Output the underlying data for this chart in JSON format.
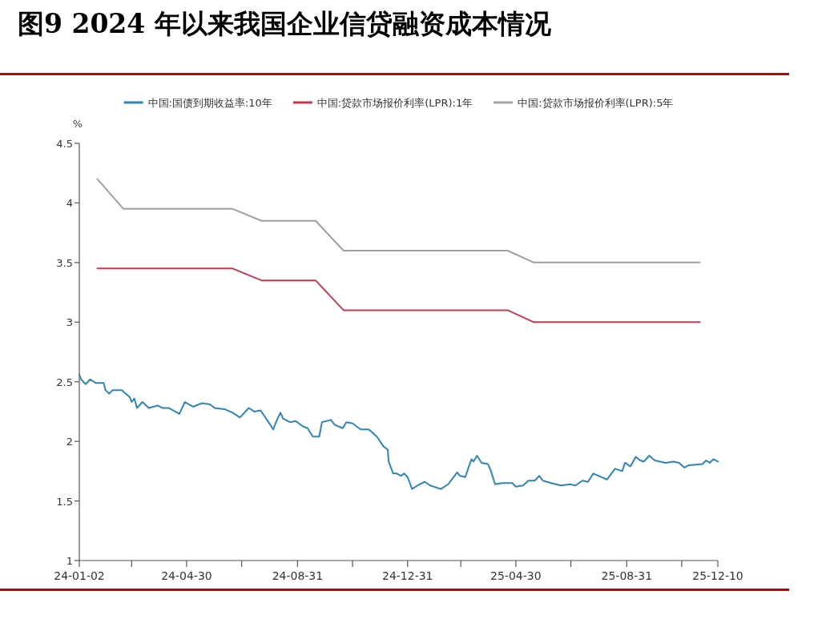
{
  "chart_data": {
    "type": "line",
    "title": "图9  2024 年以来我国企业信贷融资成本情况",
    "ylabel": "%",
    "xlim": [
      "2024-01-02",
      "2025-12-10"
    ],
    "xticks": [
      {
        "value": "2024-01-02",
        "label": "24-01-02"
      },
      {
        "value": "2024-02-29",
        "label": null
      },
      {
        "value": "2024-04-30",
        "label": "24-04-30"
      },
      {
        "value": "2024-06-30",
        "label": null
      },
      {
        "value": "2024-08-31",
        "label": "24-08-31"
      },
      {
        "value": "2024-10-31",
        "label": null
      },
      {
        "value": "2024-12-31",
        "label": "24-12-31"
      },
      {
        "value": "2025-02-28",
        "label": null
      },
      {
        "value": "2025-04-30",
        "label": "25-04-30"
      },
      {
        "value": "2025-06-30",
        "label": null
      },
      {
        "value": "2025-08-31",
        "label": "25-08-31"
      },
      {
        "value": "2025-10-31",
        "label": null
      },
      {
        "value": "2025-12-10",
        "label": "25-12-10"
      }
    ],
    "ylim": [
      1,
      4.5
    ],
    "yticks": [
      1,
      1.5,
      2,
      2.5,
      3,
      3.5,
      4,
      4.5
    ],
    "grid": false,
    "legend": "top",
    "marker": "none",
    "line_style": "solid",
    "series": [
      {
        "name": "中国:国债到期收益率:10年",
        "color": "#2f86b5",
        "x": [
          "2024-01-02",
          "2024-01-04",
          "2024-01-09",
          "2024-01-14",
          "2024-01-20",
          "2024-01-29",
          "2024-01-31",
          "2024-02-04",
          "2024-02-08",
          "2024-02-18",
          "2024-02-27",
          "2024-02-29",
          "2024-03-03",
          "2024-03-06",
          "2024-03-12",
          "2024-03-19",
          "2024-03-29",
          "2024-04-03",
          "2024-04-10",
          "2024-04-22",
          "2024-04-28",
          "2024-05-07",
          "2024-05-17",
          "2024-05-26",
          "2024-05-31",
          "2024-06-11",
          "2024-06-20",
          "2024-06-28",
          "2024-07-08",
          "2024-07-14",
          "2024-07-21",
          "2024-07-29",
          "2024-08-04",
          "2024-08-07",
          "2024-08-12",
          "2024-08-15",
          "2024-08-23",
          "2024-08-29",
          "2024-09-05",
          "2024-09-11",
          "2024-09-17",
          "2024-09-24",
          "2024-09-27",
          "2024-10-07",
          "2024-10-11",
          "2024-10-20",
          "2024-10-24",
          "2024-10-31",
          "2024-11-09",
          "2024-11-18",
          "2024-11-27",
          "2024-12-04",
          "2024-12-09",
          "2024-12-10",
          "2024-12-15",
          "2024-12-19",
          "2024-12-24",
          "2024-12-27",
          "2024-12-31",
          "2025-01-05",
          "2025-01-11",
          "2025-01-19",
          "2025-01-25",
          "2025-02-06",
          "2025-02-14",
          "2025-02-18",
          "2025-02-24",
          "2025-02-27",
          "2025-03-05",
          "2025-03-09",
          "2025-03-12",
          "2025-03-14",
          "2025-03-18",
          "2025-03-23",
          "2025-03-30",
          "2025-04-02",
          "2025-04-07",
          "2025-04-15",
          "2025-04-26",
          "2025-04-30",
          "2025-05-08",
          "2025-05-14",
          "2025-05-21",
          "2025-05-26",
          "2025-05-30",
          "2025-06-08",
          "2025-06-19",
          "2025-06-29",
          "2025-07-05",
          "2025-07-13",
          "2025-07-19",
          "2025-07-25",
          "2025-07-31",
          "2025-08-09",
          "2025-08-18",
          "2025-08-26",
          "2025-08-29",
          "2025-09-04",
          "2025-09-10",
          "2025-09-15",
          "2025-09-19",
          "2025-09-25",
          "2025-10-01",
          "2025-10-13",
          "2025-10-22",
          "2025-10-28",
          "2025-11-03",
          "2025-11-08",
          "2025-11-23",
          "2025-11-27",
          "2025-12-01",
          "2025-12-05",
          "2025-12-10"
        ],
        "values": [
          2.56,
          2.52,
          2.48,
          2.52,
          2.49,
          2.49,
          2.43,
          2.4,
          2.43,
          2.43,
          2.37,
          2.33,
          2.36,
          2.28,
          2.33,
          2.28,
          2.3,
          2.28,
          2.28,
          2.23,
          2.33,
          2.29,
          2.32,
          2.31,
          2.28,
          2.27,
          2.24,
          2.2,
          2.28,
          2.25,
          2.26,
          2.17,
          2.1,
          2.16,
          2.24,
          2.19,
          2.16,
          2.17,
          2.13,
          2.11,
          2.04,
          2.04,
          2.16,
          2.18,
          2.14,
          2.11,
          2.16,
          2.15,
          2.1,
          2.1,
          2.04,
          1.96,
          1.93,
          1.83,
          1.73,
          1.73,
          1.71,
          1.73,
          1.7,
          1.6,
          1.63,
          1.66,
          1.63,
          1.6,
          1.64,
          1.68,
          1.74,
          1.71,
          1.7,
          1.79,
          1.85,
          1.83,
          1.88,
          1.82,
          1.81,
          1.76,
          1.64,
          1.65,
          1.65,
          1.62,
          1.63,
          1.67,
          1.67,
          1.71,
          1.67,
          1.65,
          1.63,
          1.64,
          1.63,
          1.67,
          1.66,
          1.73,
          1.71,
          1.68,
          1.77,
          1.75,
          1.82,
          1.79,
          1.87,
          1.84,
          1.83,
          1.88,
          1.84,
          1.82,
          1.83,
          1.82,
          1.78,
          1.8,
          1.81,
          1.84,
          1.82,
          1.85,
          1.83
        ]
      },
      {
        "name": "中国:贷款市场报价利率(LPR):1年",
        "color": "#c8384f",
        "x": [
          "2024-01-22",
          "2024-02-20",
          "2024-06-20",
          "2024-07-22",
          "2024-09-20",
          "2024-10-21",
          "2025-04-21",
          "2025-05-20",
          "2025-11-20"
        ],
        "values": [
          3.45,
          3.45,
          3.45,
          3.35,
          3.35,
          3.1,
          3.1,
          3.0,
          3.0
        ]
      },
      {
        "name": "中国:贷款市场报价利率(LPR):5年",
        "color": "#a0a0a0",
        "x": [
          "2024-01-22",
          "2024-02-20",
          "2024-06-20",
          "2024-07-22",
          "2024-09-20",
          "2024-10-21",
          "2025-04-21",
          "2025-05-20",
          "2025-11-20"
        ],
        "values": [
          4.2,
          3.95,
          3.95,
          3.85,
          3.85,
          3.6,
          3.6,
          3.5,
          3.5
        ]
      }
    ]
  }
}
